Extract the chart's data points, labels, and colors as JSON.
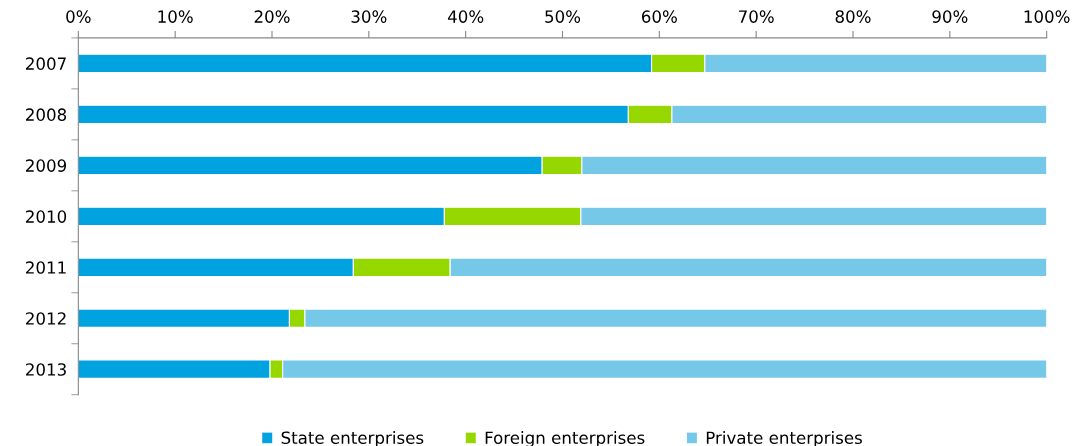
{
  "chart_data": {
    "type": "bar",
    "orientation": "horizontal",
    "stacked": true,
    "categories": [
      "2007",
      "2008",
      "2009",
      "2010",
      "2011",
      "2012",
      "2013"
    ],
    "series": [
      {
        "name": "State enterprises",
        "color": "#00a3e0",
        "values": [
          59.2,
          56.8,
          47.9,
          37.8,
          28.4,
          21.8,
          19.8
        ]
      },
      {
        "name": "Foreign enterprises",
        "color": "#97d700",
        "values": [
          5.5,
          4.5,
          4.1,
          14.1,
          10.0,
          1.6,
          1.3
        ]
      },
      {
        "name": "Private enterprises",
        "color": "#75c8e8",
        "values": [
          35.3,
          38.7,
          48.0,
          48.1,
          61.6,
          76.6,
          78.9
        ]
      }
    ],
    "xlim": [
      0,
      100
    ],
    "xticks": [
      {
        "value": 0,
        "label": "0%"
      },
      {
        "value": 10,
        "label": "10%"
      },
      {
        "value": 20,
        "label": "20%"
      },
      {
        "value": 30,
        "label": "30%"
      },
      {
        "value": 40,
        "label": "40%"
      },
      {
        "value": 50,
        "label": "50%"
      },
      {
        "value": 60,
        "label": "60%"
      },
      {
        "value": 70,
        "label": "70%"
      },
      {
        "value": 80,
        "label": "80%"
      },
      {
        "value": 90,
        "label": "90%"
      },
      {
        "value": 100,
        "label": "100%"
      }
    ],
    "grid": false,
    "legend": "bottom"
  }
}
